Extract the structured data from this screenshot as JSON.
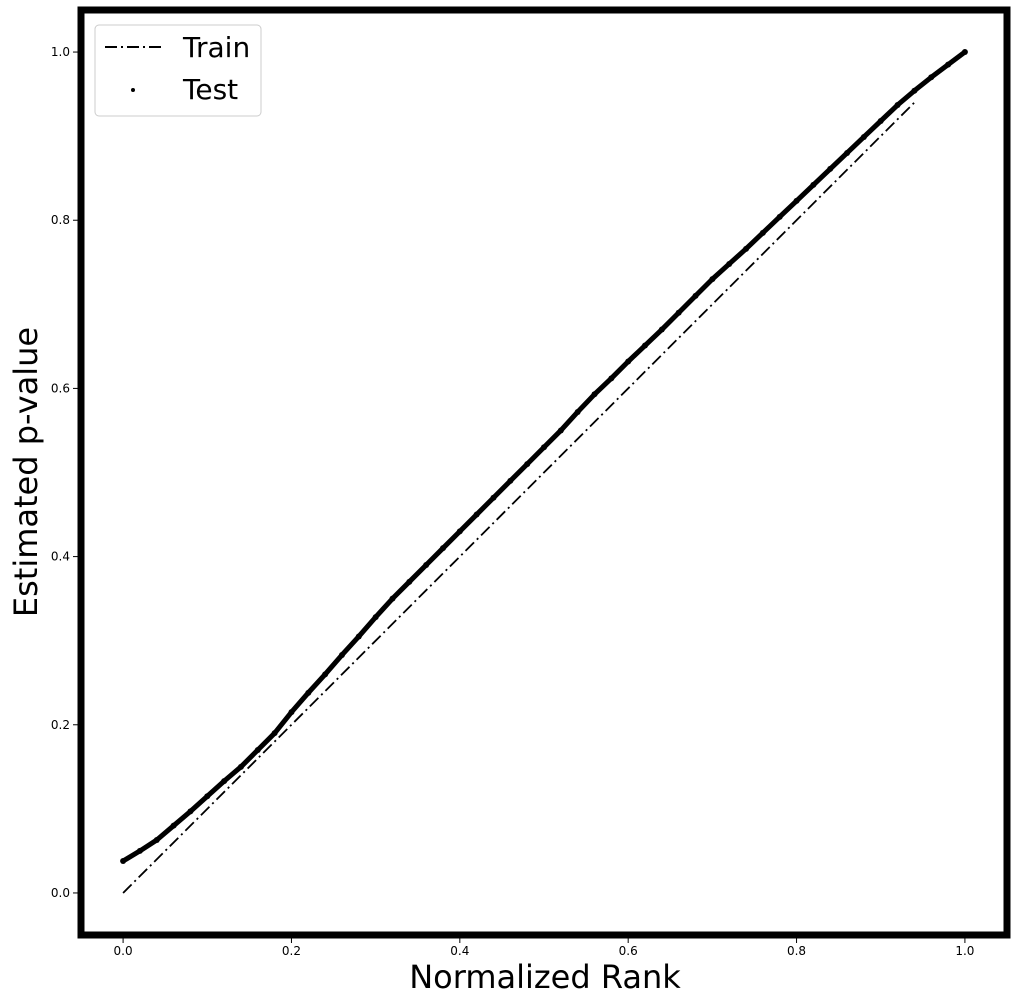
{
  "chart_data": {
    "type": "line",
    "title": "",
    "xlabel": "Normalized Rank",
    "ylabel": "Estimated p-value",
    "xlim": [
      -0.05,
      1.05
    ],
    "ylim": [
      -0.05,
      1.05
    ],
    "xticks": [
      0.0,
      0.2,
      0.4,
      0.6,
      0.8,
      1.0
    ],
    "xtick_labels": [
      "0.0",
      "0.2",
      "0.4",
      "0.6",
      "0.8",
      "1.0"
    ],
    "yticks": [
      0.0,
      0.2,
      0.4,
      0.6,
      0.8,
      1.0
    ],
    "ytick_labels": [
      "0.0",
      "0.2",
      "0.4",
      "0.6",
      "0.8",
      "1.0"
    ],
    "grid": false,
    "legend_position": "top-left",
    "series": [
      {
        "name": "Train",
        "kind": "line",
        "style": "dash-dot",
        "color": "#000000",
        "x": [
          0.0,
          0.94
        ],
        "y": [
          0.0,
          0.94
        ]
      },
      {
        "name": "Test",
        "kind": "scatter",
        "color": "#000000",
        "x": [
          0.0,
          0.02,
          0.04,
          0.06,
          0.08,
          0.1,
          0.12,
          0.14,
          0.16,
          0.18,
          0.2,
          0.22,
          0.24,
          0.26,
          0.28,
          0.3,
          0.32,
          0.34,
          0.36,
          0.38,
          0.4,
          0.42,
          0.44,
          0.46,
          0.48,
          0.5,
          0.52,
          0.54,
          0.56,
          0.58,
          0.6,
          0.62,
          0.64,
          0.66,
          0.68,
          0.7,
          0.72,
          0.74,
          0.76,
          0.78,
          0.8,
          0.82,
          0.84,
          0.86,
          0.88,
          0.9,
          0.92,
          0.94,
          0.96,
          0.98,
          1.0
        ],
        "y": [
          0.038,
          0.05,
          0.063,
          0.08,
          0.097,
          0.115,
          0.133,
          0.15,
          0.17,
          0.19,
          0.215,
          0.238,
          0.26,
          0.283,
          0.305,
          0.328,
          0.35,
          0.37,
          0.39,
          0.41,
          0.43,
          0.45,
          0.47,
          0.49,
          0.51,
          0.53,
          0.55,
          0.572,
          0.593,
          0.612,
          0.632,
          0.651,
          0.67,
          0.69,
          0.71,
          0.73,
          0.748,
          0.766,
          0.785,
          0.804,
          0.823,
          0.842,
          0.861,
          0.88,
          0.899,
          0.918,
          0.937,
          0.954,
          0.97,
          0.985,
          1.0
        ]
      }
    ]
  }
}
